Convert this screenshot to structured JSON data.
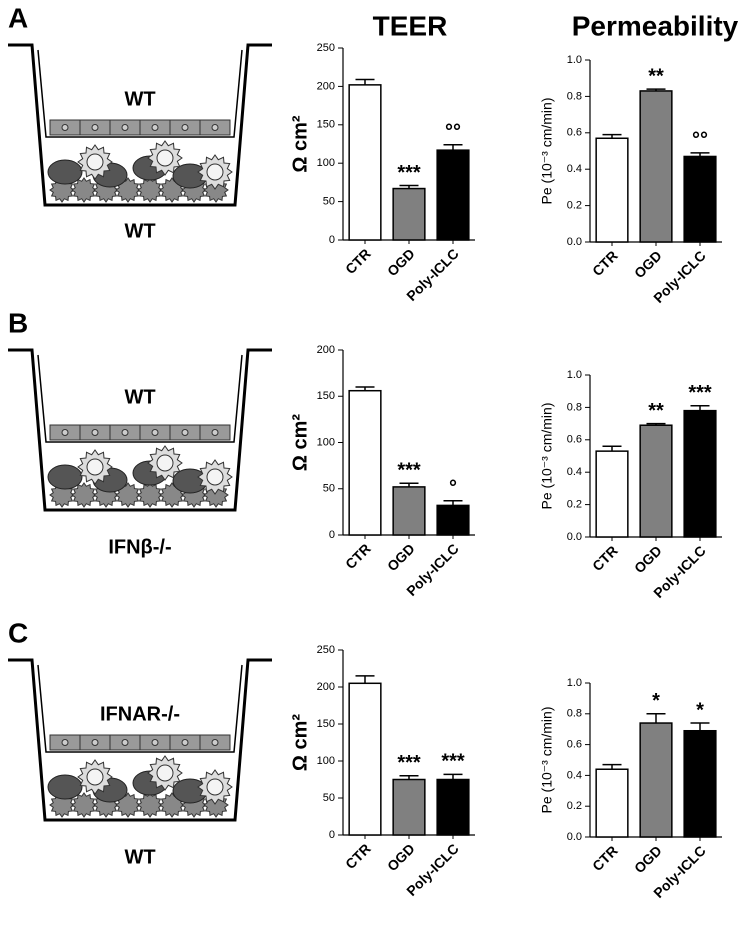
{
  "headers": [
    "TEER",
    "Permeability"
  ],
  "panels": [
    {
      "label": "A",
      "insert": "WT",
      "bottom": "WT"
    },
    {
      "label": "B",
      "insert": "WT",
      "bottom": "IFNβ-/-"
    },
    {
      "label": "C",
      "insert": "IFNAR-/-",
      "bottom": "WT"
    }
  ],
  "chart_data": [
    {
      "type": "bar",
      "ylabel": "Ω cm²",
      "categories": [
        "CTR",
        "OGD",
        "Poly-ICLC"
      ],
      "values": [
        202,
        67,
        117
      ],
      "errors": [
        7,
        4,
        7
      ],
      "colors": [
        "#ffffff",
        "#808080",
        "#000000"
      ],
      "annotations": [
        null,
        "***",
        "°°"
      ],
      "ylim": [
        0,
        250
      ],
      "yticks": [
        0,
        50,
        100,
        150,
        200,
        250
      ]
    },
    {
      "type": "bar",
      "ylabel": "Pe (10⁻³ cm/min)",
      "categories": [
        "CTR",
        "OGD",
        "Poly-ICLC"
      ],
      "values": [
        0.57,
        0.83,
        0.47
      ],
      "errors": [
        0.02,
        0.01,
        0.02
      ],
      "colors": [
        "#ffffff",
        "#808080",
        "#000000"
      ],
      "annotations": [
        null,
        "**",
        "°°"
      ],
      "ylim": [
        0,
        1
      ],
      "yticks": [
        {
          "value": 0,
          "label": "0.0"
        },
        0.2,
        0.4,
        0.6,
        0.8,
        {
          "value": 1,
          "label": "1.0"
        }
      ]
    },
    {
      "type": "bar",
      "ylabel": "Ω cm²",
      "categories": [
        "CTR",
        "OGD",
        "Poly-ICLC"
      ],
      "values": [
        156,
        52,
        32
      ],
      "errors": [
        4,
        4,
        5
      ],
      "colors": [
        "#ffffff",
        "#808080",
        "#000000"
      ],
      "annotations": [
        null,
        "***",
        "°"
      ],
      "ylim": [
        0,
        200
      ],
      "yticks": [
        0,
        50,
        100,
        150,
        200
      ]
    },
    {
      "type": "bar",
      "ylabel": "Pe (10⁻³ cm/min)",
      "categories": [
        "CTR",
        "OGD",
        "Poly-ICLC"
      ],
      "values": [
        0.53,
        0.69,
        0.78
      ],
      "errors": [
        0.03,
        0.01,
        0.03
      ],
      "colors": [
        "#ffffff",
        "#808080",
        "#000000"
      ],
      "annotations": [
        null,
        "**",
        "***"
      ],
      "ylim": [
        0,
        1
      ],
      "yticks": [
        {
          "value": 0,
          "label": "0.0"
        },
        0.2,
        0.4,
        0.6,
        0.8,
        {
          "value": 1,
          "label": "1.0"
        }
      ]
    },
    {
      "type": "bar",
      "ylabel": "Ω cm²",
      "categories": [
        "CTR",
        "OGD",
        "Poly-ICLC"
      ],
      "values": [
        205,
        75,
        75
      ],
      "errors": [
        10,
        5,
        7
      ],
      "colors": [
        "#ffffff",
        "#808080",
        "#000000"
      ],
      "annotations": [
        null,
        "***",
        "***"
      ],
      "ylim": [
        0,
        250
      ],
      "yticks": [
        0,
        50,
        100,
        150,
        200,
        250
      ]
    },
    {
      "type": "bar",
      "ylabel": "Pe (10⁻³ cm/min)",
      "categories": [
        "CTR",
        "OGD",
        "Poly-ICLC"
      ],
      "values": [
        0.44,
        0.74,
        0.69
      ],
      "errors": [
        0.03,
        0.06,
        0.05
      ],
      "colors": [
        "#ffffff",
        "#808080",
        "#000000"
      ],
      "annotations": [
        null,
        "*",
        "*"
      ],
      "ylim": [
        0,
        1
      ],
      "yticks": [
        {
          "value": 0,
          "label": "0.0"
        },
        0.2,
        0.4,
        0.6,
        0.8,
        {
          "value": 1,
          "label": "1.0"
        }
      ]
    }
  ]
}
